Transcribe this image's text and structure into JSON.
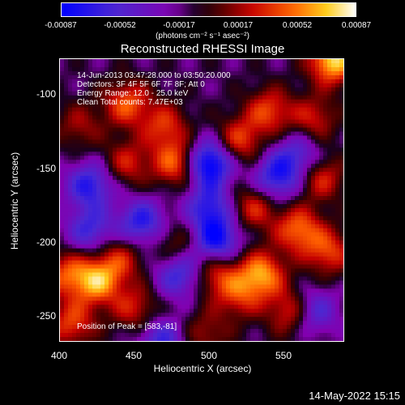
{
  "colorbar": {
    "ticks": [
      "-0.00087",
      "-0.00052",
      "-0.00017",
      "0.00017",
      "0.00052",
      "0.00087"
    ],
    "units": "(photons cm⁻² s⁻¹ asec⁻²)",
    "colors": [
      "#0000ff",
      "#4b2fcf",
      "#8a00b6",
      "#3a0000",
      "#c00000",
      "#ff6000",
      "#ffd020",
      "#ffffff"
    ]
  },
  "annotations": {
    "line1": "14-Jun-2013 03:47:28.000 to 03:50:20.000",
    "line2": "Detectors: 3F 4F 5F 6F 7F 8F; Att 0",
    "line3": "Energy Range: 12.0 - 25.0 keV",
    "line4": "Clean    Total counts: 7.47E+03",
    "peak": "Position of Peak = [583,-81]"
  },
  "footer": {
    "timestamp": "14-May-2022 15:15"
  },
  "chart_data": {
    "type": "heatmap",
    "title": "Reconstructed RHESSI Image",
    "xlabel": "Heliocentric X (arcsec)",
    "ylabel": "Heliocentric Y (arcsec)",
    "xlim": [
      400,
      590
    ],
    "ylim": [
      -270,
      -80
    ],
    "xticks": [
      400,
      450,
      500,
      550
    ],
    "yticks": [
      -100,
      -150,
      -200,
      -250
    ],
    "colorbar_range": [
      -0.00087,
      0.00087
    ],
    "peak": [
      583,
      -81
    ],
    "sources": [
      {
        "x": 583,
        "y": -81,
        "v": 0.00087
      },
      {
        "x": 445,
        "y": -110,
        "v": 0.00055
      },
      {
        "x": 470,
        "y": -125,
        "v": 0.00045
      },
      {
        "x": 413,
        "y": -125,
        "v": 0.0003
      },
      {
        "x": 478,
        "y": -150,
        "v": 0.0006
      },
      {
        "x": 445,
        "y": -150,
        "v": 0.0004
      },
      {
        "x": 520,
        "y": -135,
        "v": 0.0005
      },
      {
        "x": 540,
        "y": -115,
        "v": 0.0005
      },
      {
        "x": 570,
        "y": -120,
        "v": 0.0004
      },
      {
        "x": 575,
        "y": -160,
        "v": 0.00045
      },
      {
        "x": 530,
        "y": -180,
        "v": 0.00045
      },
      {
        "x": 560,
        "y": -195,
        "v": 0.0006
      },
      {
        "x": 580,
        "y": -210,
        "v": 0.0005
      },
      {
        "x": 535,
        "y": -225,
        "v": 0.0007
      },
      {
        "x": 505,
        "y": -225,
        "v": 0.00045
      },
      {
        "x": 520,
        "y": -240,
        "v": 0.0004
      },
      {
        "x": 555,
        "y": -250,
        "v": 0.0005
      },
      {
        "x": 425,
        "y": -230,
        "v": 0.0007
      },
      {
        "x": 405,
        "y": -225,
        "v": 0.0005
      },
      {
        "x": 450,
        "y": -248,
        "v": 0.0004
      },
      {
        "x": 408,
        "y": -258,
        "v": 0.0005
      },
      {
        "x": 498,
        "y": -265,
        "v": 0.0003
      },
      {
        "x": 440,
        "y": -215,
        "v": 0.0004
      },
      {
        "x": 478,
        "y": -205,
        "v": 0.0003
      },
      {
        "x": 500,
        "y": -150,
        "v": -0.00087
      },
      {
        "x": 455,
        "y": -190,
        "v": -0.0006
      },
      {
        "x": 420,
        "y": -165,
        "v": -0.0006
      },
      {
        "x": 505,
        "y": -202,
        "v": -0.0007
      },
      {
        "x": 480,
        "y": -225,
        "v": -0.00055
      },
      {
        "x": 545,
        "y": -160,
        "v": -0.0006
      },
      {
        "x": 570,
        "y": -250,
        "v": -0.0005
      },
      {
        "x": 468,
        "y": -270,
        "v": -0.0005
      },
      {
        "x": 420,
        "y": -195,
        "v": -0.0005
      },
      {
        "x": 560,
        "y": -145,
        "v": -0.00045
      },
      {
        "x": 500,
        "y": -180,
        "v": -0.00055
      }
    ]
  }
}
